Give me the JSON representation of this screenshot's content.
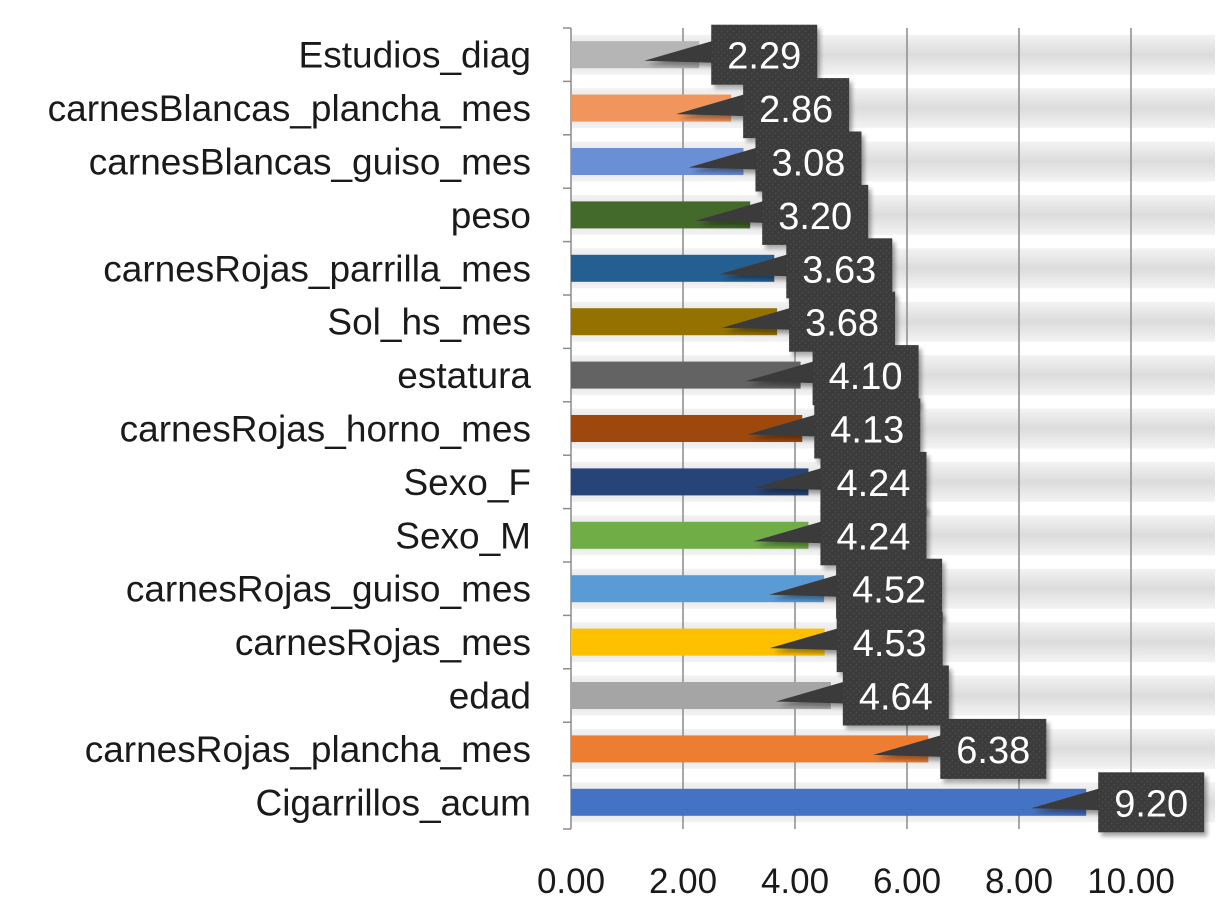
{
  "chart_data": {
    "type": "bar",
    "orientation": "horizontal",
    "title": "",
    "xlabel": "",
    "ylabel": "",
    "xlim": [
      0,
      11.5
    ],
    "x_ticks": [
      0,
      2,
      4,
      6,
      8,
      10
    ],
    "x_tick_labels": [
      "0.00",
      "2.00",
      "4.00",
      "6.00",
      "8.00",
      "10.00"
    ],
    "grid": "vertical",
    "legend": "none",
    "data_label_style": "dark callout boxes with white text",
    "categories": [
      "Estudios_diag",
      "carnesBlancas_plancha_mes",
      "carnesBlancas_guiso_mes",
      "peso",
      "carnesRojas_parrilla_mes",
      "Sol_hs_mes",
      "estatura",
      "carnesRojas_horno_mes",
      "Sexo_F",
      "Sexo_M",
      "carnesRojas_guiso_mes",
      "carnesRojas_mes",
      "edad",
      "carnesRojas_plancha_mes",
      "Cigarrillos_acum"
    ],
    "values": [
      2.29,
      2.86,
      3.08,
      3.2,
      3.63,
      3.68,
      4.1,
      4.13,
      4.24,
      4.24,
      4.52,
      4.53,
      4.64,
      6.38,
      9.2
    ],
    "value_labels": [
      "2.29",
      "2.86",
      "3.08",
      "3.20",
      "3.63",
      "3.68",
      "4.10",
      "4.13",
      "4.24",
      "4.24",
      "4.52",
      "4.53",
      "4.64",
      "6.38",
      "9.20"
    ],
    "bar_colors": [
      "#b5b5b5",
      "#f0955b",
      "#6a8fd6",
      "#436a2a",
      "#255e91",
      "#957200",
      "#636363",
      "#9e480e",
      "#264478",
      "#70ad47",
      "#5b9bd5",
      "#ffc000",
      "#a5a5a5",
      "#ed7d31",
      "#4472c4"
    ],
    "label_box_color": "#3b3b3b",
    "gridline_color": "#8c8c8c"
  }
}
